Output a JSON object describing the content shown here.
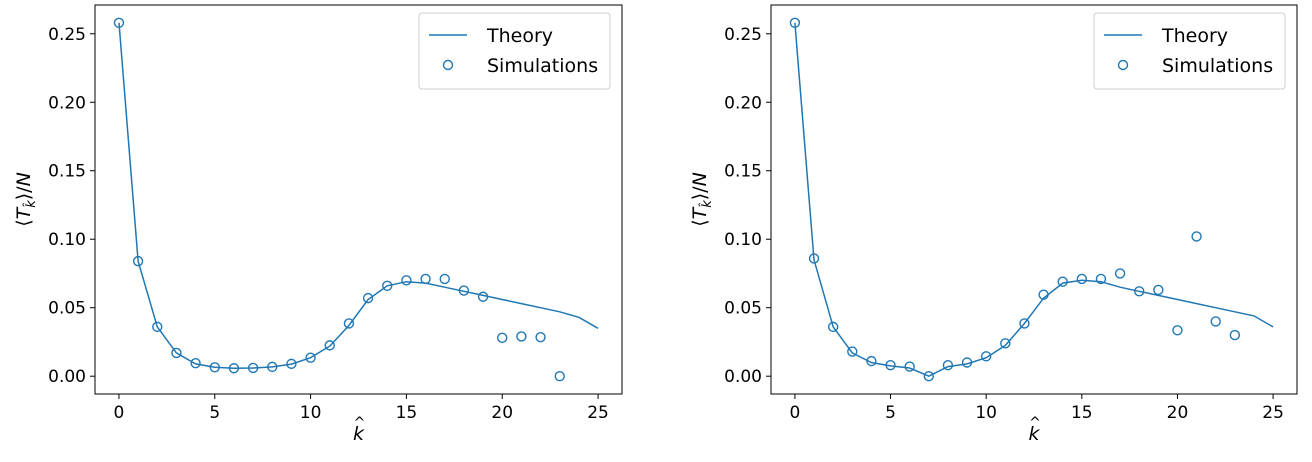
{
  "chart_data": [
    {
      "type": "line",
      "title": "",
      "xlabel": "k̂",
      "ylabel": "⟨T_k̂⟩/N",
      "xlim": [
        -1.25,
        26.25
      ],
      "ylim": [
        -0.013,
        0.271
      ],
      "xticks": [
        0,
        5,
        10,
        15,
        20,
        25
      ],
      "xtick_labels": [
        "0",
        "5",
        "10",
        "15",
        "20",
        "25"
      ],
      "yticks": [
        0.0,
        0.05,
        0.1,
        0.15,
        0.2,
        0.25
      ],
      "ytick_labels": [
        "0.00",
        "0.05",
        "0.10",
        "0.15",
        "0.20",
        "0.25"
      ],
      "grid": false,
      "legend_position": "top-right",
      "series": [
        {
          "name": "Theory",
          "kind": "line",
          "x": [
            0,
            1,
            2,
            3,
            4,
            5,
            6,
            7,
            8,
            9,
            10,
            11,
            12,
            13,
            14,
            15,
            16,
            17,
            18,
            19,
            20,
            21,
            22,
            23,
            24,
            25
          ],
          "y": [
            0.258,
            0.084,
            0.036,
            0.017,
            0.009,
            0.0065,
            0.0058,
            0.006,
            0.0068,
            0.0088,
            0.0135,
            0.022,
            0.037,
            0.056,
            0.066,
            0.069,
            0.068,
            0.065,
            0.062,
            0.059,
            0.056,
            0.053,
            0.05,
            0.047,
            0.043,
            0.035
          ]
        },
        {
          "name": "Simulations",
          "kind": "scatter",
          "x": [
            0,
            1,
            2,
            3,
            4,
            5,
            6,
            7,
            8,
            9,
            10,
            11,
            12,
            13,
            14,
            15,
            16,
            17,
            18,
            19,
            20,
            21,
            22,
            23
          ],
          "y": [
            0.258,
            0.084,
            0.036,
            0.017,
            0.0095,
            0.0065,
            0.0058,
            0.006,
            0.0068,
            0.009,
            0.0135,
            0.0225,
            0.0385,
            0.057,
            0.066,
            0.07,
            0.071,
            0.071,
            0.0625,
            0.058,
            0.028,
            0.029,
            0.0285,
            0.0
          ]
        }
      ]
    },
    {
      "type": "line",
      "title": "",
      "xlabel": "k̂",
      "ylabel": "⟨T_k̂⟩/N",
      "xlim": [
        -1.25,
        26.25
      ],
      "ylim": [
        -0.013,
        0.271
      ],
      "xticks": [
        0,
        5,
        10,
        15,
        20,
        25
      ],
      "xtick_labels": [
        "0",
        "5",
        "10",
        "15",
        "20",
        "25"
      ],
      "yticks": [
        0.0,
        0.05,
        0.1,
        0.15,
        0.2,
        0.25
      ],
      "ytick_labels": [
        "0.00",
        "0.05",
        "0.10",
        "0.15",
        "0.20",
        "0.25"
      ],
      "grid": false,
      "legend_position": "top-right",
      "series": [
        {
          "name": "Theory",
          "kind": "line",
          "x": [
            0,
            1,
            2,
            3,
            4,
            5,
            6,
            7,
            8,
            9,
            10,
            11,
            12,
            13,
            14,
            15,
            16,
            17,
            18,
            19,
            20,
            21,
            22,
            23,
            24,
            25
          ],
          "y": [
            0.258,
            0.085,
            0.036,
            0.017,
            0.01,
            0.0075,
            0.006,
            0.0,
            0.007,
            0.009,
            0.0135,
            0.0225,
            0.0385,
            0.057,
            0.068,
            0.07,
            0.069,
            0.065,
            0.062,
            0.059,
            0.056,
            0.053,
            0.05,
            0.047,
            0.044,
            0.036
          ]
        },
        {
          "name": "Simulations",
          "kind": "scatter",
          "x": [
            0,
            1,
            2,
            3,
            4,
            5,
            6,
            7,
            8,
            9,
            10,
            11,
            12,
            13,
            14,
            15,
            16,
            17,
            18,
            19,
            20,
            21,
            22,
            23
          ],
          "y": [
            0.258,
            0.086,
            0.036,
            0.018,
            0.011,
            0.008,
            0.007,
            0.0,
            0.008,
            0.01,
            0.0145,
            0.024,
            0.0385,
            0.0595,
            0.069,
            0.071,
            0.071,
            0.075,
            0.062,
            0.063,
            0.0335,
            0.102,
            0.04,
            0.03
          ]
        }
      ]
    }
  ],
  "colors": {
    "series": "#1f77b4",
    "axes": "#000000",
    "legend_border": "#cccccc"
  }
}
